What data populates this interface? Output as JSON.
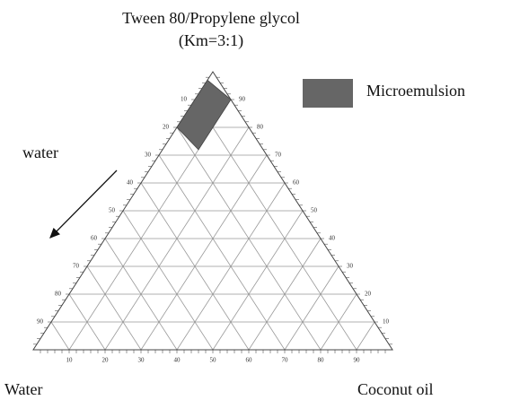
{
  "chart_data": {
    "type": "ternary",
    "title": [
      "Tween 80/Propylene glycol",
      "(Km=3:1)"
    ],
    "annotation": "water",
    "corner_labels": {
      "water": "Water",
      "oil": "Coconut oil"
    },
    "water_ticks": [
      10,
      20,
      30,
      40,
      50,
      60,
      70,
      80,
      90
    ],
    "oil_ticks": [
      10,
      20,
      30,
      40,
      50,
      60,
      70,
      80,
      90
    ],
    "surfactant_ticks": [
      10,
      20,
      30,
      40,
      50,
      60,
      70,
      80,
      90
    ],
    "grid": true,
    "region": {
      "name": "Microemulsion",
      "color": "#666666",
      "points": [
        {
          "surfactant": 97,
          "oil": 0,
          "water": 3
        },
        {
          "surfactant": 90,
          "oil": 10,
          "water": 0
        },
        {
          "surfactant": 72,
          "oil": 10,
          "water": 18
        },
        {
          "surfactant": 80,
          "oil": 0,
          "water": 20
        }
      ]
    }
  }
}
